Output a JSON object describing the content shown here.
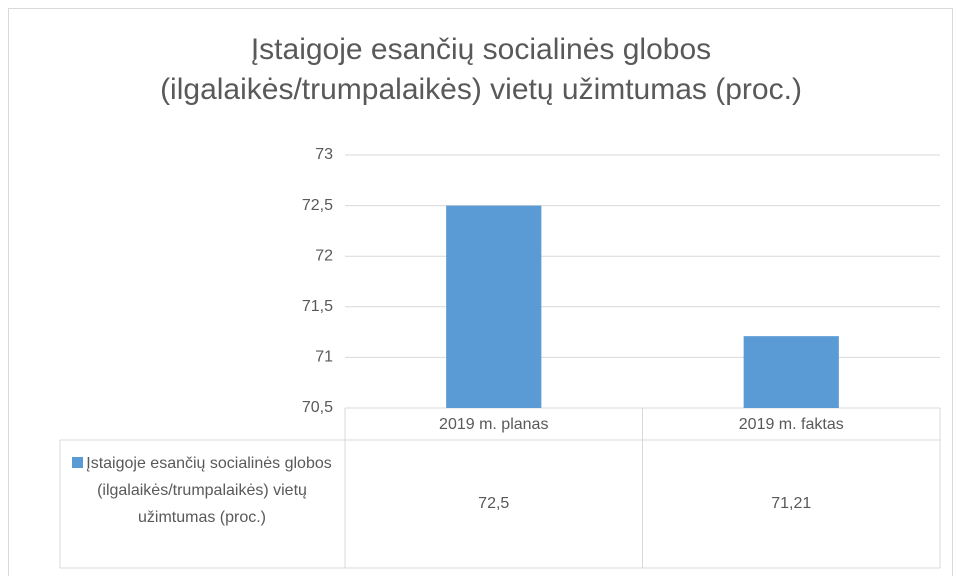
{
  "chart_data": {
    "type": "bar",
    "title": "Įstaigoje esančių socialinės globos (ilgalaikės/trumpalaikės) vietų užimtumas (proc.)",
    "categories": [
      "2019 m. planas",
      "2019 m. faktas"
    ],
    "series": [
      {
        "name": "Įstaigoje esančių socialinės globos (ilgalaikės/trumpalaikės) vietų užimtumas (proc.)",
        "color": "#5b9bd5",
        "values": [
          72.5,
          71.21
        ],
        "value_labels": [
          "72,5",
          "71,21"
        ]
      }
    ],
    "ylim": [
      70.5,
      73
    ],
    "yticks": [
      {
        "value": 70.5,
        "label": "70,5"
      },
      71,
      {
        "value": 71.5,
        "label": "71,5"
      },
      72,
      {
        "value": 72.5,
        "label": "72,5"
      },
      73
    ],
    "grid": true
  }
}
